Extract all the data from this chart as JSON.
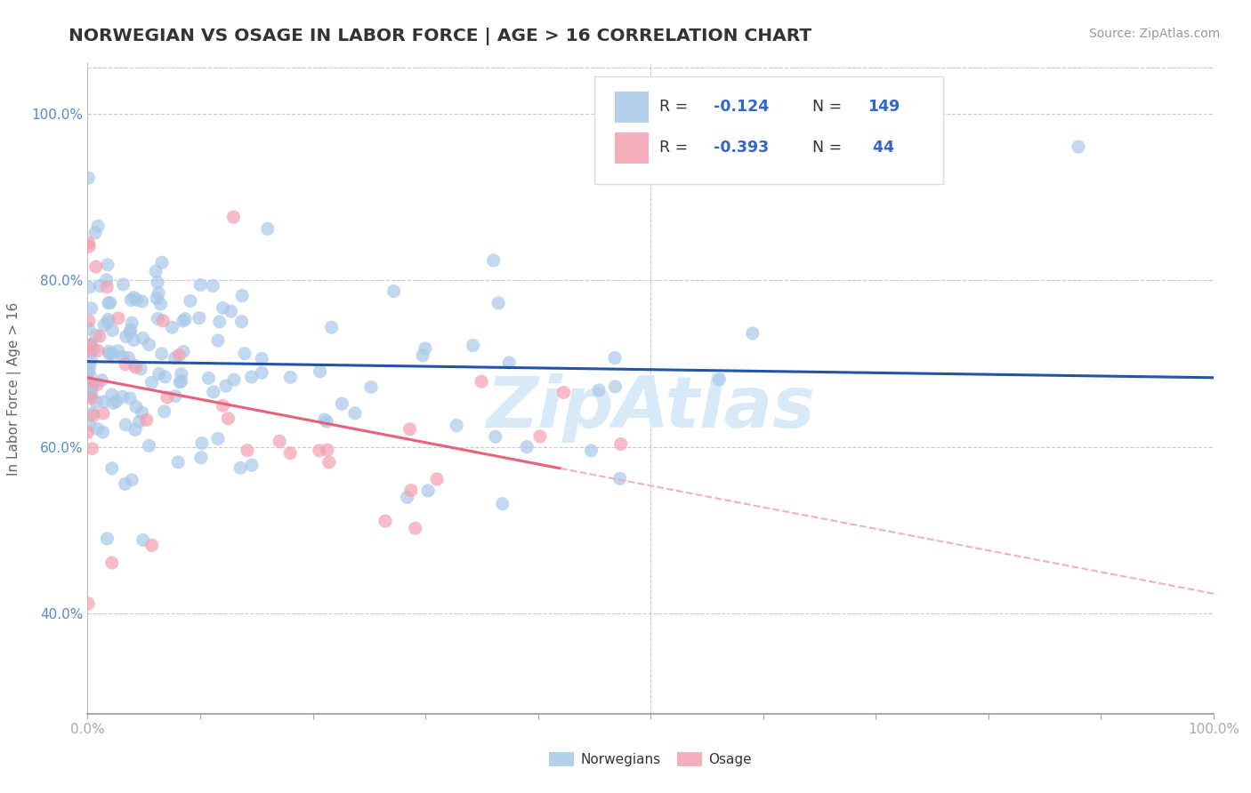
{
  "title": "NORWEGIAN VS OSAGE IN LABOR FORCE | AGE > 16 CORRELATION CHART",
  "source_text": "Source: ZipAtlas.com",
  "ylabel": "In Labor Force | Age > 16",
  "xlim": [
    0.0,
    1.0
  ],
  "ylim": [
    0.28,
    1.06
  ],
  "y_ticks": [
    0.4,
    0.6,
    0.8,
    1.0
  ],
  "y_tick_labels": [
    "40.0%",
    "60.0%",
    "80.0%",
    "100.0%"
  ],
  "x_ticks": [
    0.0,
    0.1,
    0.2,
    0.3,
    0.4,
    0.5,
    0.6,
    0.7,
    0.8,
    0.9,
    1.0
  ],
  "x_tick_labels": [
    "0.0%",
    "",
    "",
    "",
    "",
    "",
    "",
    "",
    "",
    "",
    "100.0%"
  ],
  "norwegian_R": -0.124,
  "norwegian_N": 149,
  "osage_R": -0.393,
  "osage_N": 44,
  "norwegian_color": "#a8c8e8",
  "osage_color": "#f4a0b0",
  "norwegian_line_color": "#2255aa",
  "osage_line_color": "#e8607a",
  "osage_dash_color": "#f0b0c0",
  "background_color": "#ffffff",
  "grid_color": "#cccccc",
  "watermark_color": "#d8eaf8",
  "legend_box_color": "#f5f5f5",
  "legend_edge_color": "#dddddd",
  "y_tick_color": "#5588cc",
  "x_tick_color": "#555555",
  "ylabel_color": "#666666",
  "title_color": "#333333",
  "source_color": "#999999",
  "legend_label_color": "#333333",
  "legend_R_color": "#333333",
  "legend_val_color": "#3366cc"
}
